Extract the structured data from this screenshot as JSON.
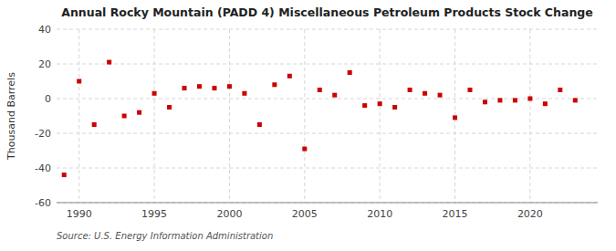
{
  "chart_data": {
    "type": "scatter",
    "title": "Annual Rocky Mountain (PADD 4) Miscellaneous Petroleum Products Stock Change",
    "y_label": "Thousand Barrels",
    "annotations": [
      "Source: U.S. Energy Information Administration"
    ],
    "x": [
      1989,
      1990,
      1991,
      1992,
      1993,
      1994,
      1995,
      1996,
      1997,
      1998,
      1999,
      2000,
      2001,
      2002,
      2003,
      2004,
      2005,
      2006,
      2007,
      2008,
      2009,
      2010,
      2011,
      2012,
      2013,
      2014,
      2015,
      2016,
      2017,
      2018,
      2019,
      2020,
      2021,
      2022,
      2023
    ],
    "values": [
      -44,
      10,
      -15,
      21,
      -10,
      -8,
      3,
      -5,
      6,
      7,
      6,
      7,
      3,
      -15,
      8,
      13,
      -29,
      5,
      2,
      15,
      -4,
      -3,
      -5,
      5,
      3,
      2,
      -11,
      5,
      -2,
      -1,
      -1,
      0,
      -3,
      5,
      -1
    ],
    "color": "#cc0000",
    "marker": "square",
    "xlim": [
      1988.5,
      2024.5
    ],
    "ylim": [
      -60,
      40
    ],
    "xticks": [
      1990,
      1995,
      2000,
      2005,
      2010,
      2015,
      2020
    ],
    "yticks": [
      -60,
      -40,
      -20,
      0,
      20,
      40
    ],
    "grid": true
  }
}
